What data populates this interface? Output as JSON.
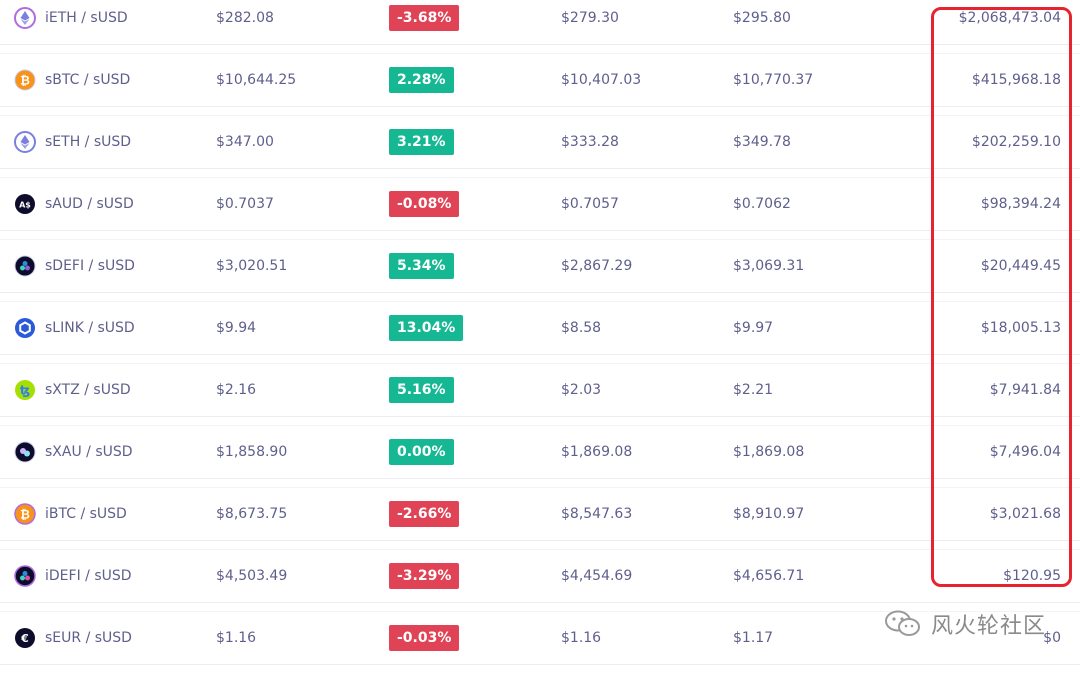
{
  "rows": [
    {
      "pair": "iETH / sUSD",
      "icon": "eth-icon",
      "icon_style": "eth-inverse",
      "price": "$282.08",
      "change": "-3.68%",
      "dir": "neg",
      "low": "$279.30",
      "high": "$295.80",
      "volume": "$2,068,473.04"
    },
    {
      "pair": "sBTC / sUSD",
      "icon": "btc-icon",
      "icon_style": "btc",
      "price": "$10,644.25",
      "change": "2.28%",
      "dir": "pos",
      "low": "$10,407.03",
      "high": "$10,770.37",
      "volume": "$415,968.18"
    },
    {
      "pair": "sETH / sUSD",
      "icon": "eth-icon",
      "icon_style": "eth",
      "price": "$347.00",
      "change": "3.21%",
      "dir": "pos",
      "low": "$333.28",
      "high": "$349.78",
      "volume": "$202,259.10"
    },
    {
      "pair": "sAUD / sUSD",
      "icon": "aud-icon",
      "icon_style": "aud",
      "icon_text": "A$",
      "price": "$0.7037",
      "change": "-0.08%",
      "dir": "neg",
      "low": "$0.7057",
      "high": "$0.7062",
      "volume": "$98,394.24"
    },
    {
      "pair": "sDEFI / sUSD",
      "icon": "defi-icon",
      "icon_style": "defi",
      "price": "$3,020.51",
      "change": "5.34%",
      "dir": "pos",
      "low": "$2,867.29",
      "high": "$3,069.31",
      "volume": "$20,449.45"
    },
    {
      "pair": "sLINK / sUSD",
      "icon": "link-icon",
      "icon_style": "link",
      "price": "$9.94",
      "change": "13.04%",
      "dir": "pos",
      "low": "$8.58",
      "high": "$9.97",
      "volume": "$18,005.13"
    },
    {
      "pair": "sXTZ / sUSD",
      "icon": "xtz-icon",
      "icon_style": "xtz",
      "price": "$2.16",
      "change": "5.16%",
      "dir": "pos",
      "low": "$2.03",
      "high": "$2.21",
      "volume": "$7,941.84"
    },
    {
      "pair": "sXAU / sUSD",
      "icon": "xau-icon",
      "icon_style": "xau",
      "price": "$1,858.90",
      "change": "0.00%",
      "dir": "pos",
      "low": "$1,869.08",
      "high": "$1,869.08",
      "volume": "$7,496.04"
    },
    {
      "pair": "iBTC / sUSD",
      "icon": "btc-icon",
      "icon_style": "btc-inverse",
      "price": "$8,673.75",
      "change": "-2.66%",
      "dir": "neg",
      "low": "$8,547.63",
      "high": "$8,910.97",
      "volume": "$3,021.68"
    },
    {
      "pair": "iDEFI / sUSD",
      "icon": "defi-icon",
      "icon_style": "defi-inverse",
      "price": "$4,503.49",
      "change": "-3.29%",
      "dir": "neg",
      "low": "$4,454.69",
      "high": "$4,656.71",
      "volume": "$120.95"
    },
    {
      "pair": "sEUR / sUSD",
      "icon": "eur-icon",
      "icon_style": "eur",
      "icon_text": "€",
      "price": "$1.16",
      "change": "-0.03%",
      "dir": "neg",
      "low": "$1.16",
      "high": "$1.17",
      "volume": "$0"
    }
  ],
  "colors": {
    "positive": "#16b894",
    "negative": "#e04355",
    "highlight": "#e8232f",
    "text": "#5f5f8c"
  },
  "watermark": {
    "text": "风火轮社区",
    "icon": "wechat-icon"
  }
}
